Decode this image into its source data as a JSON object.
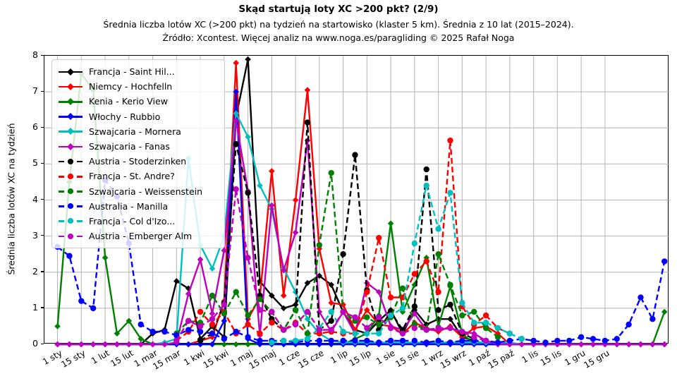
{
  "header": {
    "title": "Skąd startują loty XC >200 pkt? (2/9)",
    "subtitle1": "Średnia liczba lotów XC (>200 pkt) na tydzień na startowisko (klaster 5 km). Średnia z 10 lat (2015–2024).",
    "subtitle2": "Źródło: Xcontest. Więcej analiz na www.noga.es/paragliding © 2025 Rafał Noga"
  },
  "chart_data": {
    "type": "line",
    "title": "Skąd startują loty XC >200 pkt? (2/9)",
    "xlabel": "",
    "ylabel": "Średnia liczba lotów XC na tydzień",
    "ylim": [
      0,
      8
    ],
    "yticks": [
      0,
      1,
      2,
      3,
      4,
      5,
      6,
      7,
      8
    ],
    "grid": true,
    "legend_position": "upper-left",
    "x_points_per_series": 52,
    "x_unit": "week of year",
    "xtick_labels": [
      "1 sty",
      "15 sty",
      "1 lut",
      "15 lut",
      "1 mar",
      "15 mar",
      "1 kwi",
      "15 kwi",
      "1 maj",
      "15 maj",
      "1 cze",
      "15 cze",
      "1 lip",
      "15 lip",
      "1 sie",
      "15 sie",
      "1 wrz",
      "15 wrz",
      "1 paź",
      "15 paź",
      "1 lis",
      "15 lis",
      "1 gru",
      "15 gru"
    ],
    "xtick_week_positions": [
      0,
      2,
      4,
      6,
      8,
      10,
      12,
      14,
      16,
      18,
      20,
      22,
      24,
      26,
      28,
      30,
      32,
      34,
      36,
      38,
      40,
      42,
      44,
      46
    ],
    "grid_color": "#b4b4b4",
    "series": [
      {
        "name": "Francja - Saint Hil...",
        "color": "#000000",
        "line_style": "solid",
        "marker": "diamond",
        "values": [
          0,
          0,
          0,
          0,
          0,
          0,
          0,
          0,
          0.3,
          0.4,
          1.75,
          1.55,
          0.15,
          0.5,
          0.2,
          6.3,
          7.9,
          1.75,
          1.35,
          1.0,
          1.1,
          1.7,
          1.9,
          1.65,
          0.9,
          0.4,
          0.3,
          0.65,
          0.95,
          0.3,
          0.95,
          0.55,
          0.7,
          0.7,
          0.2,
          0.1,
          0,
          0,
          0,
          0,
          0,
          0,
          0,
          0,
          0,
          0,
          0,
          0,
          0,
          0,
          0,
          0
        ]
      },
      {
        "name": "Niemcy - Hochfelln",
        "color": "#ff0000",
        "line_style": "solid",
        "marker": "diamond",
        "values": [
          0,
          0,
          0,
          0,
          0,
          0,
          0,
          0,
          0,
          0,
          0,
          0,
          0.1,
          0.2,
          1.2,
          7.8,
          0.7,
          1.3,
          4.8,
          1.35,
          4.0,
          7.05,
          2.65,
          1.15,
          1.1,
          0.4,
          0.95,
          0.55,
          0.5,
          0.3,
          0.6,
          0.45,
          0.35,
          0.5,
          0.2,
          0.45,
          0.5,
          0.3,
          0,
          0,
          0,
          0,
          0,
          0,
          0,
          0,
          0,
          0,
          0,
          0,
          0,
          0
        ]
      },
      {
        "name": "Kenia - Kerio View",
        "color": "#008000",
        "line_style": "solid",
        "marker": "diamond",
        "values": [
          0.5,
          4.5,
          7.5,
          7.05,
          2.4,
          0.3,
          0.65,
          0.15,
          0,
          0,
          0,
          0,
          0,
          0,
          0,
          0,
          0,
          0,
          0,
          0,
          0,
          0,
          0,
          0,
          0,
          0.15,
          0.3,
          0.8,
          3.35,
          0.9,
          1.65,
          2.4,
          0.5,
          1.6,
          0.3,
          0,
          0,
          0,
          0,
          0,
          0,
          0,
          0,
          0,
          0,
          0,
          0,
          0,
          0,
          0,
          0,
          0.9
        ]
      },
      {
        "name": "Włochy - Rubbio",
        "color": "#0000ff",
        "line_style": "solid",
        "marker": "diamond",
        "values": [
          0,
          0,
          0,
          0,
          0,
          0,
          0,
          0,
          0,
          0,
          0,
          0,
          0,
          0,
          0.65,
          7.0,
          0.15,
          0,
          0,
          0,
          0,
          0,
          0,
          0,
          0,
          0,
          0,
          0,
          0,
          0,
          0,
          0,
          0,
          0,
          0,
          0,
          0,
          0,
          0,
          0,
          0,
          0,
          0,
          0,
          0,
          0,
          0,
          0,
          0,
          0,
          0,
          0
        ]
      },
      {
        "name": "Szwajcaria - Mornera",
        "color": "#00bfbf",
        "line_style": "solid",
        "marker": "diamond",
        "values": [
          0,
          0,
          0,
          0,
          0,
          0,
          0,
          0,
          0,
          0.05,
          0.15,
          5.15,
          2.75,
          2.1,
          3.0,
          6.4,
          5.75,
          4.4,
          3.75,
          2.1,
          1.45,
          0.7,
          0.3,
          0.1,
          0.05,
          0.05,
          0.05,
          0.05,
          0.05,
          0.05,
          0.05,
          0.05,
          0.05,
          0.05,
          0.05,
          0.05,
          0.05,
          0.05,
          0.05,
          0,
          0,
          0,
          0,
          0,
          0,
          0,
          0,
          0,
          0,
          0,
          0,
          0
        ]
      },
      {
        "name": "Szwajcaria - Fanas",
        "color": "#bf00bf",
        "line_style": "solid",
        "marker": "diamond",
        "values": [
          0,
          0,
          0,
          0,
          0,
          0,
          0,
          0,
          0,
          0,
          0.05,
          1.4,
          2.35,
          0.85,
          2.6,
          6.2,
          4.25,
          0.25,
          3.85,
          2.05,
          3.1,
          5.65,
          0.9,
          0.35,
          0.9,
          0.3,
          1.7,
          1.45,
          0.5,
          0.4,
          0.85,
          0.4,
          0.4,
          0.45,
          0.35,
          0.3,
          0.1,
          0,
          0,
          0,
          0,
          0,
          0,
          0,
          0,
          0,
          0,
          0,
          0,
          0,
          0,
          0
        ]
      },
      {
        "name": "Austria - Stoderzinken",
        "color": "#000000",
        "line_style": "dashed",
        "marker": "circle",
        "values": [
          null,
          null,
          null,
          null,
          null,
          null,
          null,
          null,
          null,
          null,
          null,
          null,
          0.1,
          0.3,
          1.15,
          5.55,
          4.2,
          1.35,
          0.7,
          0.4,
          0.95,
          6.15,
          0.4,
          0.65,
          2.5,
          5.25,
          1.5,
          0.4,
          0.9,
          0.4,
          1.05,
          4.85,
          0.95,
          1.1,
          0.3,
          0.15,
          null,
          null,
          null,
          null,
          null,
          null,
          null,
          null,
          null,
          null,
          null,
          null,
          null,
          null,
          null,
          null
        ]
      },
      {
        "name": "Francja - St. Andre?",
        "color": "#ff0000",
        "line_style": "dashed",
        "marker": "circle",
        "values": [
          null,
          null,
          null,
          null,
          null,
          null,
          null,
          null,
          null,
          null,
          0.1,
          0.35,
          0.9,
          0.55,
          0.9,
          0.3,
          0.55,
          0.3,
          0.6,
          0.4,
          0.6,
          0.3,
          0.3,
          0.35,
          0.3,
          0.3,
          1.45,
          2.95,
          1.3,
          1.3,
          1.95,
          2.3,
          1.45,
          5.65,
          1.05,
          0.55,
          0.8,
          0.45,
          0.3,
          null,
          null,
          null,
          null,
          null,
          null,
          null,
          null,
          null,
          null,
          null,
          null,
          null
        ]
      },
      {
        "name": "Szwajcaria - Weissenstein",
        "color": "#008000",
        "line_style": "dashed",
        "marker": "circle",
        "values": [
          null,
          null,
          null,
          null,
          null,
          null,
          null,
          null,
          null,
          null,
          0.3,
          0.65,
          0.6,
          1.35,
          0.85,
          1.45,
          0.8,
          1.25,
          0.9,
          0.4,
          0.95,
          0.3,
          2.75,
          4.75,
          0.9,
          0.65,
          0.75,
          0.55,
          0.75,
          1.55,
          0.55,
          0.4,
          2.5,
          1.65,
          0.8,
          0.9,
          0.45,
          0.2,
          null,
          null,
          null,
          null,
          null,
          null,
          null,
          null,
          null,
          null,
          null,
          null,
          null,
          null
        ]
      },
      {
        "name": "Australia - Manilla",
        "color": "#0000ff",
        "line_style": "dashed",
        "marker": "circle",
        "values": [
          2.7,
          2.45,
          1.2,
          1.0,
          4.55,
          4.1,
          2.8,
          0.55,
          0.35,
          0.35,
          0.25,
          0.4,
          0.35,
          0.3,
          0.15,
          0.35,
          0.2,
          0.1,
          0.1,
          0.1,
          0.05,
          0.1,
          0.1,
          0.1,
          0.1,
          0.1,
          0.1,
          0.05,
          0.1,
          0.1,
          0.1,
          0.05,
          0.1,
          0.05,
          0.1,
          0.1,
          0.1,
          0.05,
          0.1,
          0.15,
          0.1,
          0.05,
          0.1,
          0.1,
          0.2,
          0.15,
          0.1,
          0.15,
          0.55,
          1.3,
          0.7,
          2.3
        ]
      },
      {
        "name": "Francja - Col d'Izo...",
        "color": "#00bfbf",
        "line_style": "dashed",
        "marker": "circle",
        "values": [
          null,
          null,
          null,
          null,
          null,
          null,
          null,
          null,
          null,
          null,
          null,
          null,
          null,
          null,
          null,
          null,
          null,
          null,
          0.05,
          0.1,
          0.1,
          0.15,
          0.45,
          0.9,
          0.35,
          0.3,
          0.3,
          0.3,
          0.8,
          1.0,
          2.8,
          4.4,
          3.2,
          4.2,
          1.15,
          0.6,
          0.6,
          0.45,
          0.3,
          0.15,
          null,
          null,
          null,
          null,
          null,
          null,
          null,
          null,
          null,
          null,
          null,
          null
        ]
      },
      {
        "name": "Austria - Emberger Alm",
        "color": "#bf00bf",
        "line_style": "dashed",
        "marker": "circle",
        "values": [
          null,
          null,
          null,
          null,
          null,
          null,
          null,
          null,
          null,
          null,
          0.1,
          0.65,
          0.5,
          0.7,
          1.1,
          4.3,
          2.4,
          0.95,
          0.9,
          0.4,
          0.55,
          0.9,
          0.4,
          0.4,
          0.9,
          0.75,
          0.45,
          0.75,
          0.45,
          0.3,
          0.45,
          0.4,
          0.45,
          0.45,
          0.35,
          0.2,
          0.1,
          null,
          null,
          null,
          null,
          null,
          null,
          null,
          null,
          null,
          null,
          null,
          null,
          null,
          null,
          null
        ]
      }
    ]
  }
}
